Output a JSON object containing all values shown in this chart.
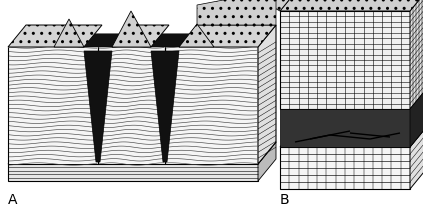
{
  "label_A": "A",
  "label_B": "B",
  "label_fontsize": 10,
  "bg_color": "#ffffff",
  "line_color": "#000000",
  "fig_width": 4.23,
  "fig_height": 2.07,
  "dpi": 100,
  "crack_color": "#111111",
  "sandy_color": "#d8d8d8",
  "lined_color": "#f2f2f2",
  "base_color": "#cccccc",
  "grid_color": "#e0e0e0"
}
